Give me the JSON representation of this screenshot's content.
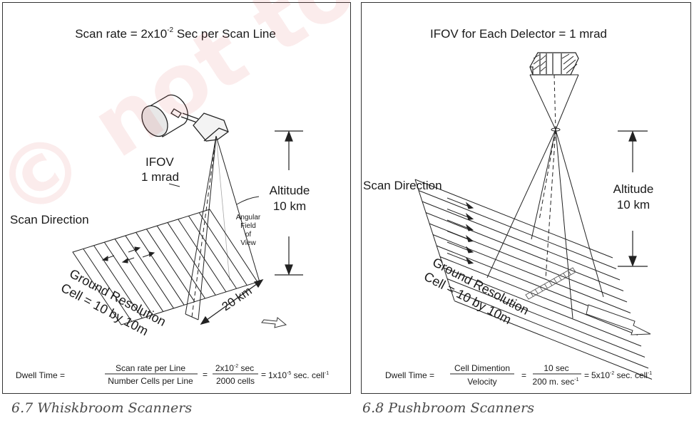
{
  "watermark": {
    "text": "© not to be republished"
  },
  "whiskbroom": {
    "title": "Scan rate = 2x10",
    "title_exp": "-2",
    "title_rest": " Sec per Scan Line",
    "ifov_label": "IFOV",
    "ifov_value": "1 mrad",
    "altitude_label": "Altitude",
    "altitude_value": "10 km",
    "angular_fov": [
      "Angular",
      "Field",
      "of",
      "View"
    ],
    "scan_direction": "Scan Direction",
    "ground_line1": "Ground Resolution",
    "ground_line2": "Cell = 10 by 10m",
    "swath": "20 km",
    "dwell": {
      "lhs": "Dwell Time =",
      "num1": "Scan rate per Line",
      "den1": "Number Cells per Line",
      "eq1": "=",
      "num2_base": "2x10",
      "num2_exp": "-2",
      "num2_unit": " sec",
      "den2": "2000 cells",
      "eq2": "=",
      "res_base": "1x10",
      "res_exp": "-5",
      "res_unit": " sec. cell",
      "res_unit_exp": "-1"
    },
    "caption": "6.7 Whiskbroom Scanners"
  },
  "pushbroom": {
    "title": "IFOV for Each Delector = 1 mrad",
    "altitude_label": "Altitude",
    "altitude_value": "10 km",
    "scan_direction": "Scan Direction",
    "ground_line1": "Ground Resolution",
    "ground_line2": "Cell = 10 by 10m",
    "dwell": {
      "lhs": "Dwell Time =",
      "num1": "Cell Dimention",
      "den1": "Velocity",
      "eq1": "=",
      "num2": "10 sec",
      "den2_base": "200 m. sec",
      "den2_exp": "-1",
      "eq2": "=",
      "res_base": "5x10",
      "res_exp": "-2",
      "res_unit": " sec. cell",
      "res_unit_exp": "-1"
    },
    "caption": "6.8 Pushbroom Scanners"
  }
}
